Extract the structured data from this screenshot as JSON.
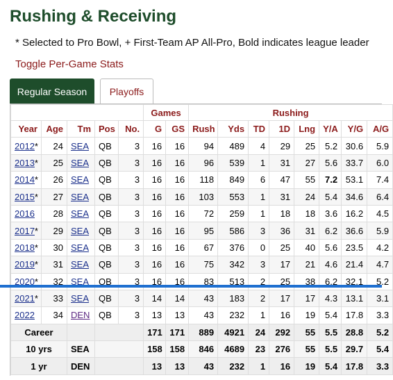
{
  "page": {
    "title": "Rushing & Receiving",
    "note": "* Selected to Pro Bowl, + First-Team AP All-Pro, Bold indicates league leader",
    "toggle": "Toggle Per-Game Stats"
  },
  "tabs": [
    {
      "label": "Regular Season",
      "active": true
    },
    {
      "label": "Playoffs",
      "active": false
    }
  ],
  "colors": {
    "accent": "#1e4d2b",
    "header_text": "#8b1a1a",
    "link": "#1a2f8b",
    "scroll_indicator": "#1e6fd0"
  },
  "table": {
    "groups": {
      "games": "Games",
      "rushing": "Rushing"
    },
    "columns": [
      "Year",
      "Age",
      "Tm",
      "Pos",
      "No.",
      "G",
      "GS",
      "Rush",
      "Yds",
      "TD",
      "1D",
      "Lng",
      "Y/A",
      "Y/G",
      "A/G"
    ],
    "rows": [
      {
        "year": "2012",
        "mark": "*",
        "age": "24",
        "tm": "SEA",
        "pos": "QB",
        "no": "3",
        "g": "16",
        "gs": "16",
        "rush": "94",
        "yds": "489",
        "td": "4",
        "fd": "29",
        "lng": "25",
        "ya": "5.2",
        "yg": "30.6",
        "ag": "5.9"
      },
      {
        "year": "2013",
        "mark": "*",
        "age": "25",
        "tm": "SEA",
        "pos": "QB",
        "no": "3",
        "g": "16",
        "gs": "16",
        "rush": "96",
        "yds": "539",
        "td": "1",
        "fd": "31",
        "lng": "27",
        "ya": "5.6",
        "yg": "33.7",
        "ag": "6.0"
      },
      {
        "year": "2014",
        "mark": "*",
        "age": "26",
        "tm": "SEA",
        "pos": "QB",
        "no": "3",
        "g": "16",
        "gs": "16",
        "rush": "118",
        "yds": "849",
        "td": "6",
        "fd": "47",
        "lng": "55",
        "ya": "7.2",
        "yg": "53.1",
        "ag": "7.4"
      },
      {
        "year": "2015",
        "mark": "*",
        "age": "27",
        "tm": "SEA",
        "pos": "QB",
        "no": "3",
        "g": "16",
        "gs": "16",
        "rush": "103",
        "yds": "553",
        "td": "1",
        "fd": "31",
        "lng": "24",
        "ya": "5.4",
        "yg": "34.6",
        "ag": "6.4"
      },
      {
        "year": "2016",
        "mark": "",
        "age": "28",
        "tm": "SEA",
        "pos": "QB",
        "no": "3",
        "g": "16",
        "gs": "16",
        "rush": "72",
        "yds": "259",
        "td": "1",
        "fd": "18",
        "lng": "18",
        "ya": "3.6",
        "yg": "16.2",
        "ag": "4.5"
      },
      {
        "year": "2017",
        "mark": "*",
        "age": "29",
        "tm": "SEA",
        "pos": "QB",
        "no": "3",
        "g": "16",
        "gs": "16",
        "rush": "95",
        "yds": "586",
        "td": "3",
        "fd": "36",
        "lng": "31",
        "ya": "6.2",
        "yg": "36.6",
        "ag": "5.9"
      },
      {
        "year": "2018",
        "mark": "*",
        "age": "30",
        "tm": "SEA",
        "pos": "QB",
        "no": "3",
        "g": "16",
        "gs": "16",
        "rush": "67",
        "yds": "376",
        "td": "0",
        "fd": "25",
        "lng": "40",
        "ya": "5.6",
        "yg": "23.5",
        "ag": "4.2"
      },
      {
        "year": "2019",
        "mark": "*",
        "age": "31",
        "tm": "SEA",
        "pos": "QB",
        "no": "3",
        "g": "16",
        "gs": "16",
        "rush": "75",
        "yds": "342",
        "td": "3",
        "fd": "17",
        "lng": "21",
        "ya": "4.6",
        "yg": "21.4",
        "ag": "4.7"
      },
      {
        "year": "2020",
        "mark": "*",
        "age": "32",
        "tm": "SEA",
        "pos": "QB",
        "no": "3",
        "g": "16",
        "gs": "16",
        "rush": "83",
        "yds": "513",
        "td": "2",
        "fd": "25",
        "lng": "38",
        "ya": "6.2",
        "yg": "32.1",
        "ag": "5.2"
      },
      {
        "year": "2021",
        "mark": "*",
        "age": "33",
        "tm": "SEA",
        "pos": "QB",
        "no": "3",
        "g": "14",
        "gs": "14",
        "rush": "43",
        "yds": "183",
        "td": "2",
        "fd": "17",
        "lng": "17",
        "ya": "4.3",
        "yg": "13.1",
        "ag": "3.1"
      },
      {
        "year": "2022",
        "mark": "",
        "age": "34",
        "tm": "DEN",
        "pos": "QB",
        "no": "3",
        "g": "13",
        "gs": "13",
        "rush": "43",
        "yds": "232",
        "td": "1",
        "fd": "16",
        "lng": "19",
        "ya": "5.4",
        "yg": "17.8",
        "ag": "3.3"
      }
    ],
    "summary": [
      {
        "label": "Career",
        "tm": "",
        "g": "171",
        "gs": "171",
        "rush": "889",
        "yds": "4921",
        "td": "24",
        "fd": "292",
        "lng": "55",
        "ya": "5.5",
        "yg": "28.8",
        "ag": "5.2"
      },
      {
        "label": "10 yrs",
        "tm": "SEA",
        "g": "158",
        "gs": "158",
        "rush": "846",
        "yds": "4689",
        "td": "23",
        "fd": "276",
        "lng": "55",
        "ya": "5.5",
        "yg": "29.7",
        "ag": "5.4"
      },
      {
        "label": "1 yr",
        "tm": "DEN",
        "g": "13",
        "gs": "13",
        "rush": "43",
        "yds": "232",
        "td": "1",
        "fd": "16",
        "lng": "19",
        "ya": "5.4",
        "yg": "17.8",
        "ag": "3.3"
      }
    ]
  }
}
